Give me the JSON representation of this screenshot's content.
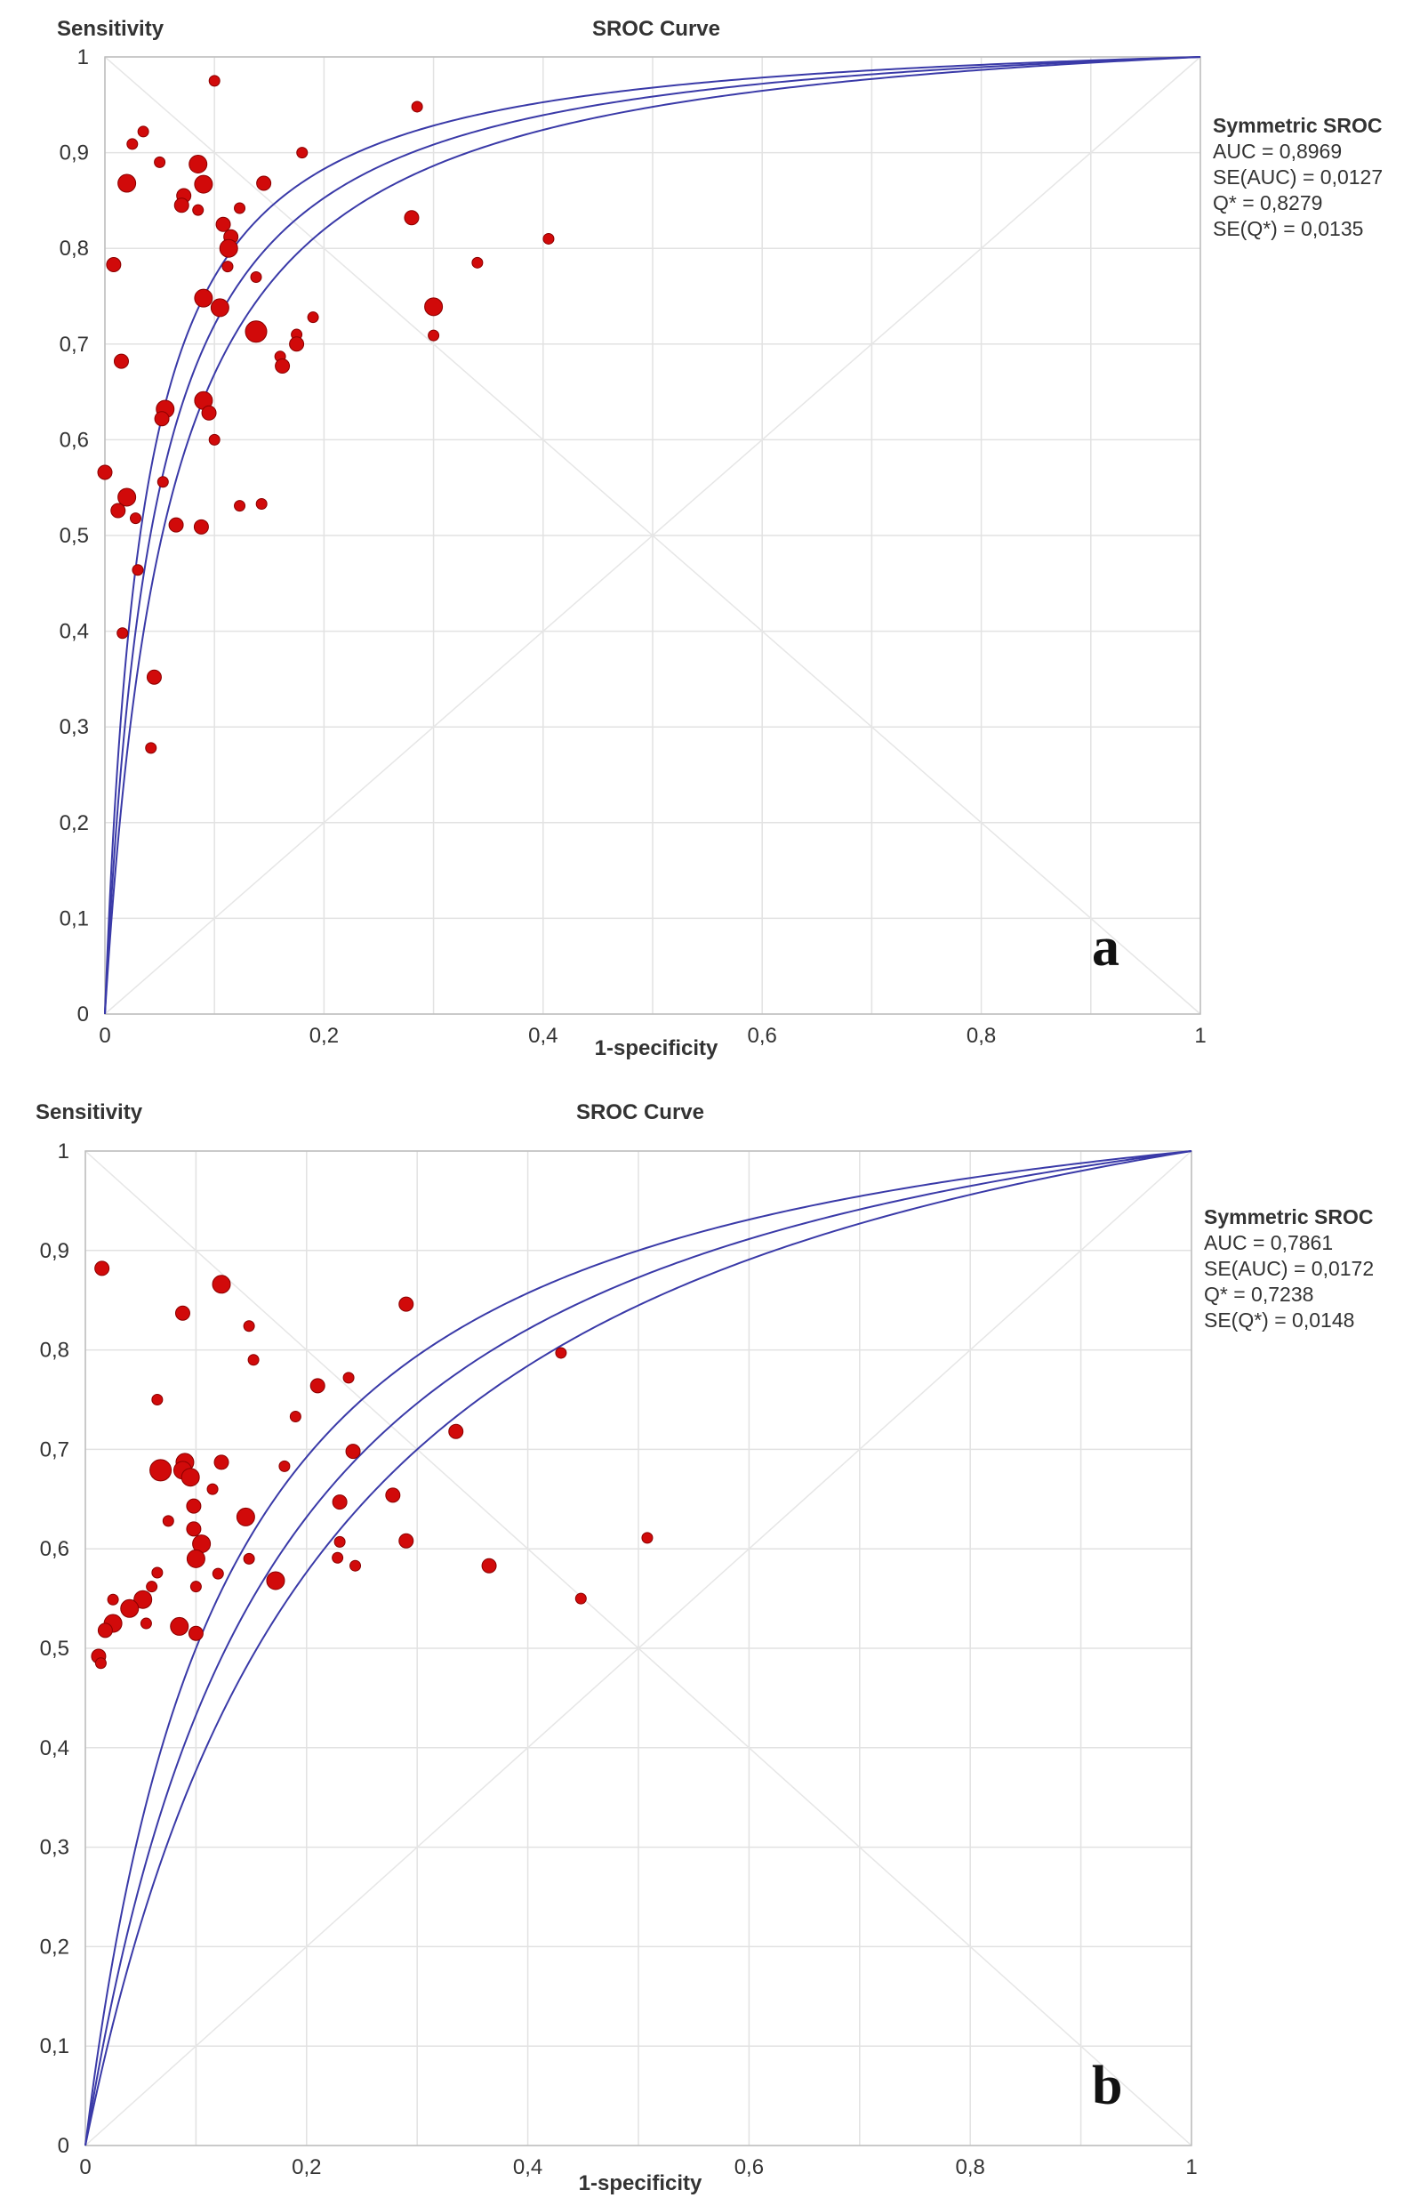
{
  "chart_data": [
    {
      "type": "scatter",
      "panel_label": "a",
      "title": "SROC Curve",
      "xlabel": "1-specificity",
      "ylabel": "Sensitivity",
      "xlim": [
        0,
        1
      ],
      "ylim": [
        0,
        1
      ],
      "xticks": [
        "0",
        "0,2",
        "0,4",
        "0,6",
        "0,8",
        "1"
      ],
      "yticks": [
        "0",
        "0,1",
        "0,2",
        "0,3",
        "0,4",
        "0,5",
        "0,6",
        "0,7",
        "0,8",
        "0,9",
        "1"
      ],
      "grid": true,
      "stats": {
        "title": "Symmetric SROC",
        "lines": [
          "AUC = 0,8969",
          "SE(AUC) = 0,0127",
          "Q* = 0,8279",
          "SE(Q*) = 0,0135"
        ]
      },
      "curve_q_values": [
        0.8279,
        0.81,
        0.846
      ],
      "points": [
        {
          "x": 0.1,
          "y": 0.975,
          "r": "s"
        },
        {
          "x": 0.285,
          "y": 0.948,
          "r": "s"
        },
        {
          "x": 0.035,
          "y": 0.922,
          "r": "s"
        },
        {
          "x": 0.025,
          "y": 0.909,
          "r": "s"
        },
        {
          "x": 0.05,
          "y": 0.89,
          "r": "s"
        },
        {
          "x": 0.085,
          "y": 0.888,
          "r": "l"
        },
        {
          "x": 0.18,
          "y": 0.9,
          "r": "s"
        },
        {
          "x": 0.02,
          "y": 0.868,
          "r": "l"
        },
        {
          "x": 0.09,
          "y": 0.867,
          "r": "l"
        },
        {
          "x": 0.145,
          "y": 0.868,
          "r": "m"
        },
        {
          "x": 0.072,
          "y": 0.855,
          "r": "m"
        },
        {
          "x": 0.07,
          "y": 0.845,
          "r": "m"
        },
        {
          "x": 0.085,
          "y": 0.84,
          "r": "s"
        },
        {
          "x": 0.123,
          "y": 0.842,
          "r": "s"
        },
        {
          "x": 0.108,
          "y": 0.825,
          "r": "m"
        },
        {
          "x": 0.115,
          "y": 0.812,
          "r": "m"
        },
        {
          "x": 0.113,
          "y": 0.8,
          "r": "l"
        },
        {
          "x": 0.28,
          "y": 0.832,
          "r": "m"
        },
        {
          "x": 0.405,
          "y": 0.81,
          "r": "s"
        },
        {
          "x": 0.008,
          "y": 0.783,
          "r": "m"
        },
        {
          "x": 0.112,
          "y": 0.781,
          "r": "s"
        },
        {
          "x": 0.34,
          "y": 0.785,
          "r": "s"
        },
        {
          "x": 0.138,
          "y": 0.77,
          "r": "s"
        },
        {
          "x": 0.09,
          "y": 0.748,
          "r": "l"
        },
        {
          "x": 0.105,
          "y": 0.738,
          "r": "l"
        },
        {
          "x": 0.3,
          "y": 0.739,
          "r": "l"
        },
        {
          "x": 0.19,
          "y": 0.728,
          "r": "s"
        },
        {
          "x": 0.138,
          "y": 0.713,
          "r": "xl"
        },
        {
          "x": 0.175,
          "y": 0.71,
          "r": "s"
        },
        {
          "x": 0.175,
          "y": 0.7,
          "r": "m"
        },
        {
          "x": 0.3,
          "y": 0.709,
          "r": "s"
        },
        {
          "x": 0.16,
          "y": 0.687,
          "r": "s"
        },
        {
          "x": 0.162,
          "y": 0.677,
          "r": "m"
        },
        {
          "x": 0.015,
          "y": 0.682,
          "r": "m"
        },
        {
          "x": 0.09,
          "y": 0.641,
          "r": "l"
        },
        {
          "x": 0.055,
          "y": 0.632,
          "r": "l"
        },
        {
          "x": 0.095,
          "y": 0.628,
          "r": "m"
        },
        {
          "x": 0.052,
          "y": 0.622,
          "r": "m"
        },
        {
          "x": 0.1,
          "y": 0.6,
          "r": "s"
        },
        {
          "x": 0.0,
          "y": 0.566,
          "r": "m"
        },
        {
          "x": 0.053,
          "y": 0.556,
          "r": "s"
        },
        {
          "x": 0.02,
          "y": 0.54,
          "r": "l"
        },
        {
          "x": 0.012,
          "y": 0.526,
          "r": "m"
        },
        {
          "x": 0.123,
          "y": 0.531,
          "r": "s"
        },
        {
          "x": 0.143,
          "y": 0.533,
          "r": "s"
        },
        {
          "x": 0.028,
          "y": 0.518,
          "r": "s"
        },
        {
          "x": 0.065,
          "y": 0.511,
          "r": "m"
        },
        {
          "x": 0.088,
          "y": 0.509,
          "r": "m"
        },
        {
          "x": 0.03,
          "y": 0.464,
          "r": "s"
        },
        {
          "x": 0.016,
          "y": 0.398,
          "r": "s"
        },
        {
          "x": 0.045,
          "y": 0.352,
          "r": "m"
        },
        {
          "x": 0.042,
          "y": 0.278,
          "r": "s"
        }
      ]
    },
    {
      "type": "scatter",
      "panel_label": "b",
      "title": "SROC Curve",
      "xlabel": "1-specificity",
      "ylabel": "Sensitivity",
      "xlim": [
        0,
        1
      ],
      "ylim": [
        0,
        1
      ],
      "xticks": [
        "0",
        "0,2",
        "0,4",
        "0,6",
        "0,8",
        "1"
      ],
      "yticks": [
        "0",
        "0,1",
        "0,2",
        "0,3",
        "0,4",
        "0,5",
        "0,6",
        "0,7",
        "0,8",
        "0,9",
        "1"
      ],
      "grid": true,
      "stats": {
        "title": "Symmetric SROC",
        "lines": [
          "AUC = 0,7861",
          "SE(AUC) = 0,0172",
          "Q* = 0,7238",
          "SE(Q*) = 0,0148"
        ]
      },
      "curve_q_values": [
        0.7238,
        0.7,
        0.75
      ],
      "points": [
        {
          "x": 0.015,
          "y": 0.882,
          "r": "m"
        },
        {
          "x": 0.123,
          "y": 0.866,
          "r": "l"
        },
        {
          "x": 0.088,
          "y": 0.837,
          "r": "m"
        },
        {
          "x": 0.148,
          "y": 0.824,
          "r": "s"
        },
        {
          "x": 0.29,
          "y": 0.846,
          "r": "m"
        },
        {
          "x": 0.43,
          "y": 0.797,
          "r": "s"
        },
        {
          "x": 0.152,
          "y": 0.79,
          "r": "s"
        },
        {
          "x": 0.238,
          "y": 0.772,
          "r": "s"
        },
        {
          "x": 0.21,
          "y": 0.764,
          "r": "m"
        },
        {
          "x": 0.065,
          "y": 0.75,
          "r": "s"
        },
        {
          "x": 0.19,
          "y": 0.733,
          "r": "s"
        },
        {
          "x": 0.335,
          "y": 0.718,
          "r": "m"
        },
        {
          "x": 0.242,
          "y": 0.698,
          "r": "m"
        },
        {
          "x": 0.09,
          "y": 0.687,
          "r": "l"
        },
        {
          "x": 0.123,
          "y": 0.687,
          "r": "m"
        },
        {
          "x": 0.18,
          "y": 0.683,
          "r": "s"
        },
        {
          "x": 0.068,
          "y": 0.679,
          "r": "xl"
        },
        {
          "x": 0.088,
          "y": 0.679,
          "r": "l"
        },
        {
          "x": 0.095,
          "y": 0.672,
          "r": "l"
        },
        {
          "x": 0.115,
          "y": 0.66,
          "r": "s"
        },
        {
          "x": 0.278,
          "y": 0.654,
          "r": "m"
        },
        {
          "x": 0.23,
          "y": 0.647,
          "r": "m"
        },
        {
          "x": 0.098,
          "y": 0.643,
          "r": "m"
        },
        {
          "x": 0.145,
          "y": 0.632,
          "r": "l"
        },
        {
          "x": 0.075,
          "y": 0.628,
          "r": "s"
        },
        {
          "x": 0.098,
          "y": 0.62,
          "r": "m"
        },
        {
          "x": 0.29,
          "y": 0.608,
          "r": "m"
        },
        {
          "x": 0.23,
          "y": 0.607,
          "r": "s"
        },
        {
          "x": 0.508,
          "y": 0.611,
          "r": "s"
        },
        {
          "x": 0.105,
          "y": 0.605,
          "r": "l"
        },
        {
          "x": 0.1,
          "y": 0.59,
          "r": "l"
        },
        {
          "x": 0.228,
          "y": 0.591,
          "r": "s"
        },
        {
          "x": 0.148,
          "y": 0.59,
          "r": "s"
        },
        {
          "x": 0.244,
          "y": 0.583,
          "r": "s"
        },
        {
          "x": 0.365,
          "y": 0.583,
          "r": "m"
        },
        {
          "x": 0.065,
          "y": 0.576,
          "r": "s"
        },
        {
          "x": 0.12,
          "y": 0.575,
          "r": "s"
        },
        {
          "x": 0.172,
          "y": 0.568,
          "r": "l"
        },
        {
          "x": 0.1,
          "y": 0.562,
          "r": "s"
        },
        {
          "x": 0.06,
          "y": 0.562,
          "r": "s"
        },
        {
          "x": 0.052,
          "y": 0.549,
          "r": "l"
        },
        {
          "x": 0.025,
          "y": 0.549,
          "r": "s"
        },
        {
          "x": 0.448,
          "y": 0.55,
          "r": "s"
        },
        {
          "x": 0.04,
          "y": 0.54,
          "r": "l"
        },
        {
          "x": 0.055,
          "y": 0.525,
          "r": "s"
        },
        {
          "x": 0.025,
          "y": 0.525,
          "r": "l"
        },
        {
          "x": 0.085,
          "y": 0.522,
          "r": "l"
        },
        {
          "x": 0.018,
          "y": 0.518,
          "r": "m"
        },
        {
          "x": 0.1,
          "y": 0.515,
          "r": "m"
        },
        {
          "x": 0.012,
          "y": 0.492,
          "r": "m"
        },
        {
          "x": 0.014,
          "y": 0.485,
          "r": "s"
        }
      ]
    }
  ],
  "colors": {
    "curve": "#3a3aa8",
    "point": "#d10a0a",
    "point_edge": "#8a0000",
    "grid": "#e2e2e2",
    "diagonal": "#e6e6e6",
    "axis": "#bdbdbd"
  }
}
